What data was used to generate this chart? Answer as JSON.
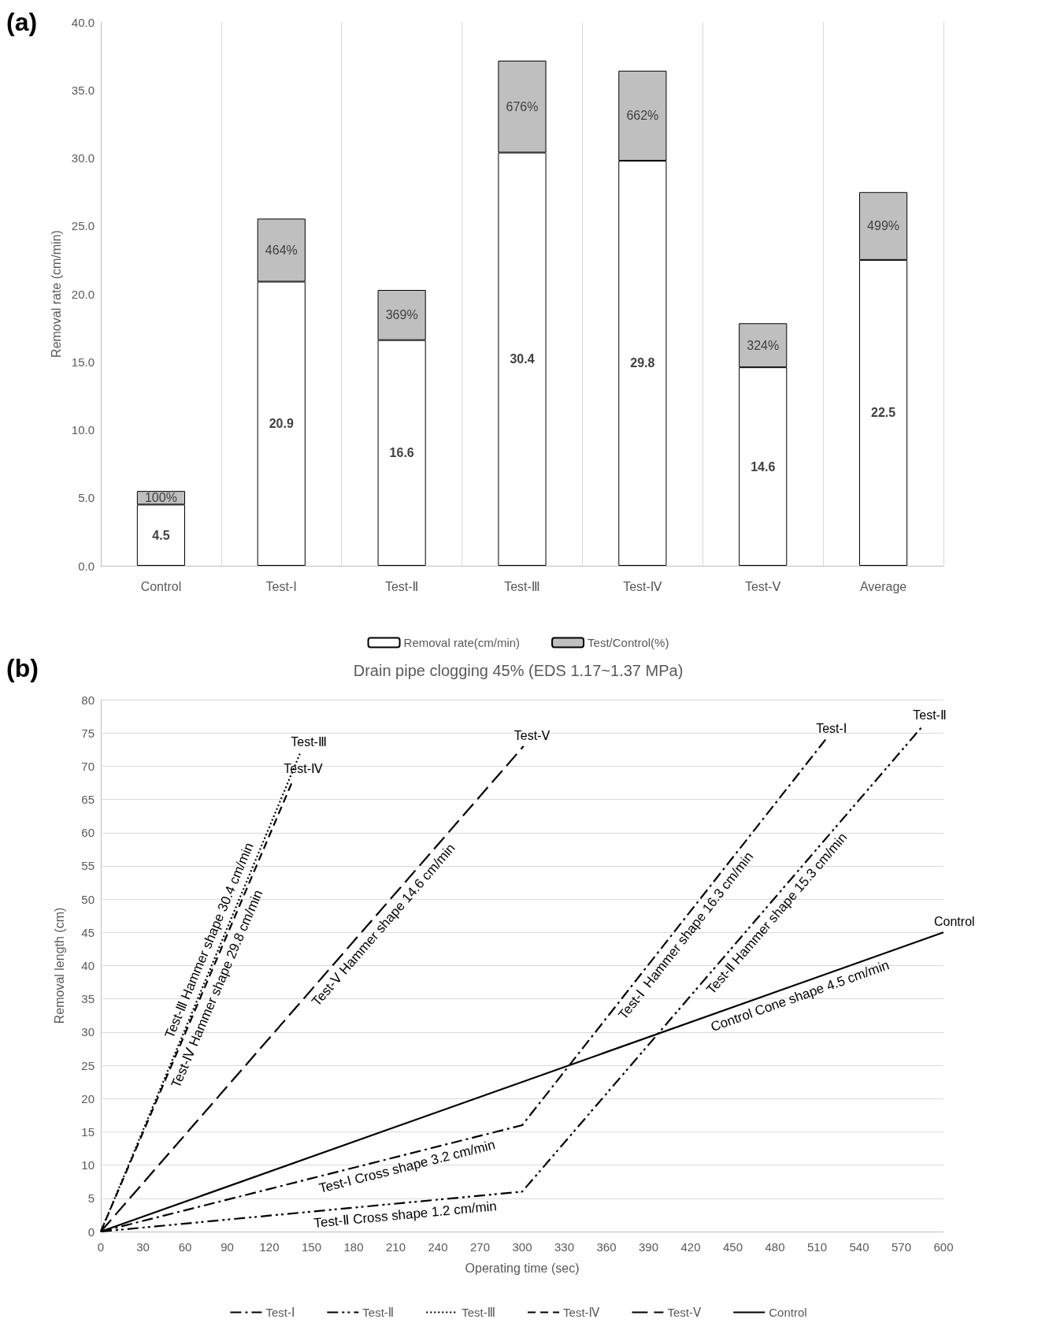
{
  "chart_data": [
    {
      "type": "bar",
      "annotations": [
        "(a)"
      ],
      "ylabel": "Removal rate (cm/min)",
      "categories": [
        "Control",
        "Test-Ⅰ",
        "Test-Ⅱ",
        "Test-Ⅲ",
        "Test-Ⅳ",
        "Test-Ⅴ",
        "Average"
      ],
      "stacked": true,
      "series": [
        {
          "name": "Removal rate(cm/min)",
          "color": "#ffffff",
          "values": [
            4.5,
            20.9,
            16.6,
            30.4,
            29.8,
            14.6,
            22.5
          ],
          "value_labels": [
            "4.5",
            "20.9",
            "16.6",
            "30.4",
            "29.8",
            "14.6",
            "22.5"
          ]
        },
        {
          "name": "Test/Control(%)",
          "color": "#bfbfbf",
          "values": [
            1.0,
            4.64,
            3.69,
            6.76,
            6.62,
            3.24,
            4.99
          ],
          "value_labels": [
            "100%",
            "464%",
            "369%",
            "676%",
            "662%",
            "324%",
            "499%"
          ]
        }
      ],
      "ylim": [
        0,
        40
      ],
      "yticks": [
        {
          "value": 0,
          "label": "0.0"
        },
        {
          "value": 5,
          "label": "5.0"
        },
        {
          "value": 10,
          "label": "10.0"
        },
        {
          "value": 15,
          "label": "15.0"
        },
        {
          "value": 20,
          "label": "20.0"
        },
        {
          "value": 25,
          "label": "25.0"
        },
        {
          "value": 30,
          "label": "30.0"
        },
        {
          "value": 35,
          "label": "35.0"
        },
        {
          "value": 40,
          "label": "40.0"
        }
      ],
      "grid": "x",
      "legend": "bottom"
    },
    {
      "type": "line",
      "title": "Drain pipe clogging 45% (EDS 1.17~1.37 MPa)",
      "xlabel": "Operating time (sec)",
      "ylabel": "Removal length (cm)",
      "marker": "none",
      "grid": "y",
      "legend": "bottom",
      "xlim": [
        0,
        600
      ],
      "xticks": [
        0,
        30,
        60,
        90,
        120,
        150,
        180,
        210,
        240,
        270,
        300,
        330,
        360,
        390,
        420,
        450,
        480,
        510,
        540,
        570,
        600
      ],
      "ylim": [
        0,
        80
      ],
      "yticks": [
        0,
        5,
        10,
        15,
        20,
        25,
        30,
        35,
        40,
        45,
        50,
        55,
        60,
        65,
        70,
        75,
        80
      ],
      "series": [
        {
          "name": "Test-Ⅰ",
          "color": "#000000",
          "line_style": "dashed",
          "x": [
            0,
            300,
            516
          ],
          "values": [
            0,
            16,
            74
          ]
        },
        {
          "name": "Test-Ⅱ",
          "color": "#000000",
          "line_style": "dashed",
          "x": [
            0,
            300,
            585
          ],
          "values": [
            0,
            6,
            76
          ]
        },
        {
          "name": "Test-Ⅲ",
          "color": "#000000",
          "line_style": "dotted",
          "x": [
            0,
            142
          ],
          "values": [
            0,
            72
          ]
        },
        {
          "name": "Test-Ⅳ",
          "color": "#000000",
          "line_style": "dashed",
          "x": [
            0,
            137
          ],
          "values": [
            0,
            68
          ]
        },
        {
          "name": "Test-Ⅴ",
          "color": "#000000",
          "line_style": "dashed",
          "x": [
            0,
            301
          ],
          "values": [
            0,
            73
          ]
        },
        {
          "name": "Control",
          "color": "#000000",
          "line_style": "solid",
          "x": [
            0,
            600
          ],
          "values": [
            0,
            45
          ]
        }
      ],
      "annotations": [
        "(b)",
        {
          "text": "Test-Ⅲ Hammer shape 30.4 cm/min",
          "x": 85,
          "y": 43.1
        },
        {
          "text": "Test-Ⅳ Hammer shape 29.8 cm/min",
          "x": 75,
          "y": 37.2
        },
        {
          "text": "Test-Ⅴ Hammer shape 14.6 cm/min",
          "x": 195,
          "y": 47.3
        },
        {
          "text": "Test-Ⅰ  Hammer shape 16.3 cm/min",
          "x": 410,
          "y": 45.6
        },
        {
          "text": "Test-Ⅱ Hammer shape 15.3 cm/min",
          "x": 475,
          "y": 49
        },
        {
          "text": "Control Cone shape 4.5 cm/min",
          "x": 495,
          "y": 37.1
        },
        {
          "text": "Test-Ⅰ Cross shape 3.2 cm/min",
          "x": 216,
          "y": 11.5
        },
        {
          "text": "Test-Ⅱ Cross shape 1.2 cm/min",
          "x": 216,
          "y": 4.32
        }
      ]
    }
  ]
}
